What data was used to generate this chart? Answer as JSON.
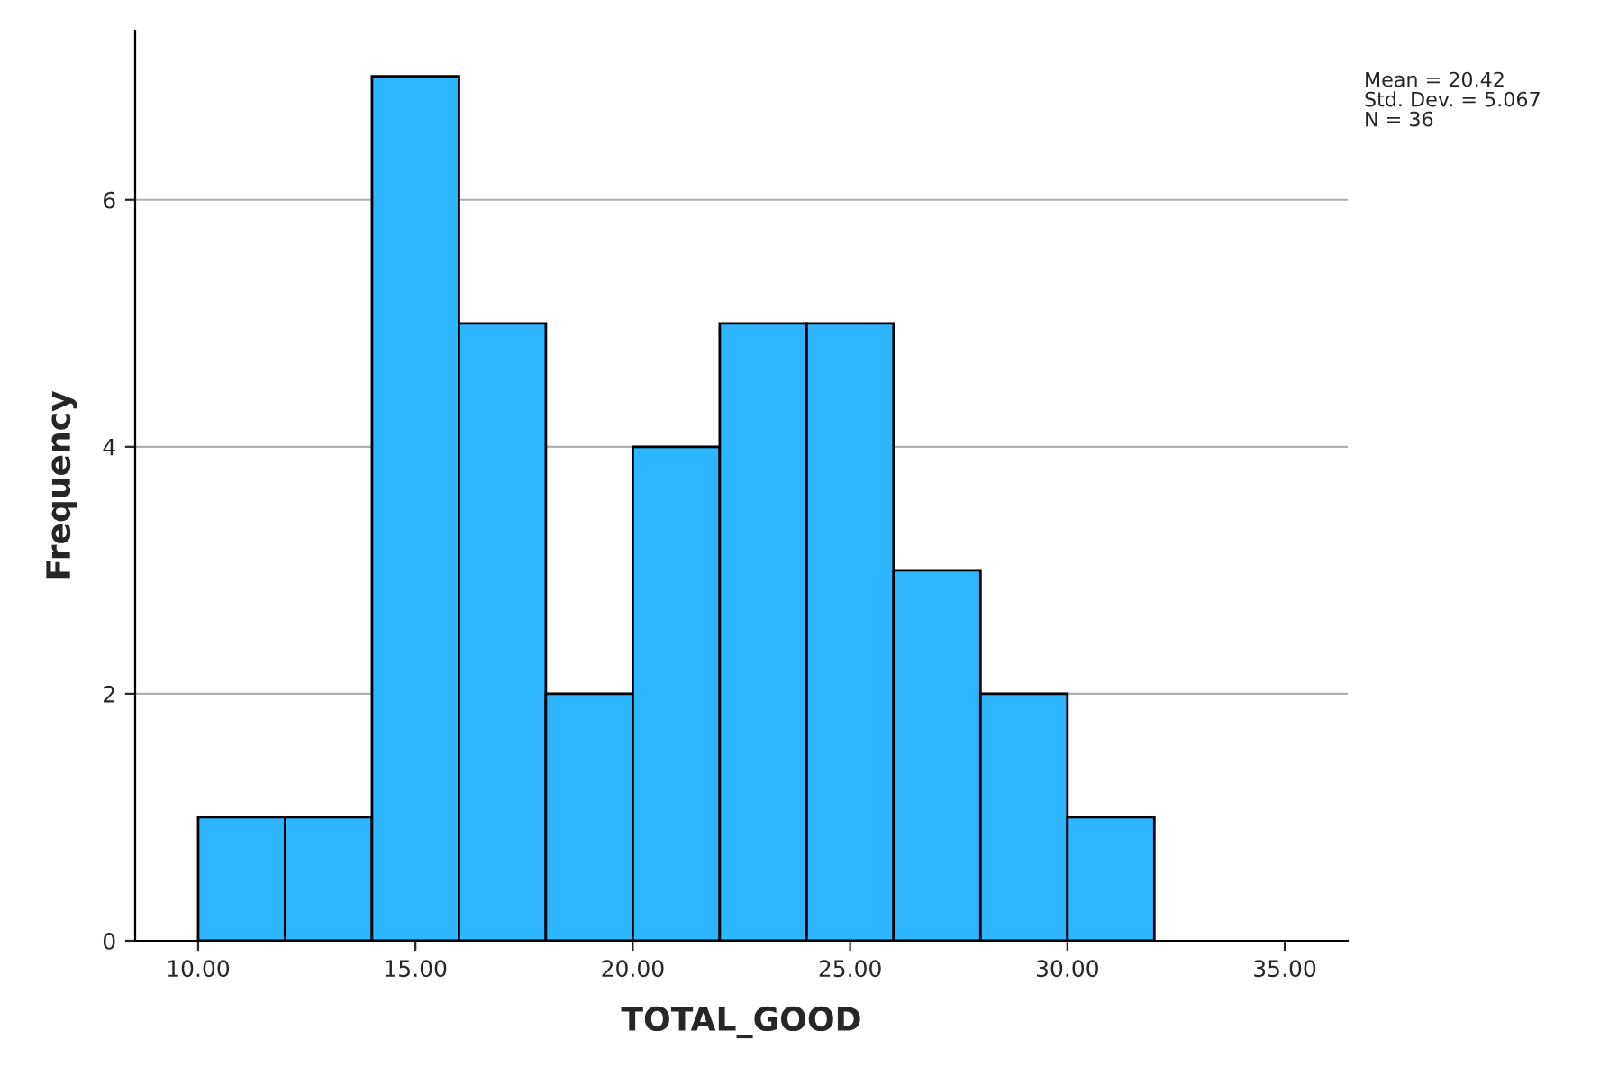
{
  "chart_data": {
    "type": "histogram",
    "xlabel": "TOTAL_GOOD",
    "ylabel": "Frequency",
    "bins": [
      10,
      12,
      14,
      16,
      18,
      20,
      22,
      24,
      26,
      28,
      30,
      32
    ],
    "values": [
      1,
      1,
      7,
      5,
      2,
      4,
      5,
      5,
      3,
      2,
      1
    ],
    "color": "#2eb5ff",
    "xlim": [
      8.55,
      36.45
    ],
    "xticks": [
      {
        "value": 10,
        "label": "10.00"
      },
      {
        "value": 15,
        "label": "15.00"
      },
      {
        "value": 20,
        "label": "20.00"
      },
      {
        "value": 25,
        "label": "25.00"
      },
      {
        "value": 30,
        "label": "30.00"
      },
      {
        "value": 35,
        "label": "35.00"
      }
    ],
    "ylim": [
      0,
      7.37
    ],
    "yticks": [
      0,
      2,
      4,
      6
    ],
    "grid": "y",
    "annotations": [
      "Mean = 20.42",
      "Std. Dev. = 5.067",
      "N = 36"
    ]
  }
}
